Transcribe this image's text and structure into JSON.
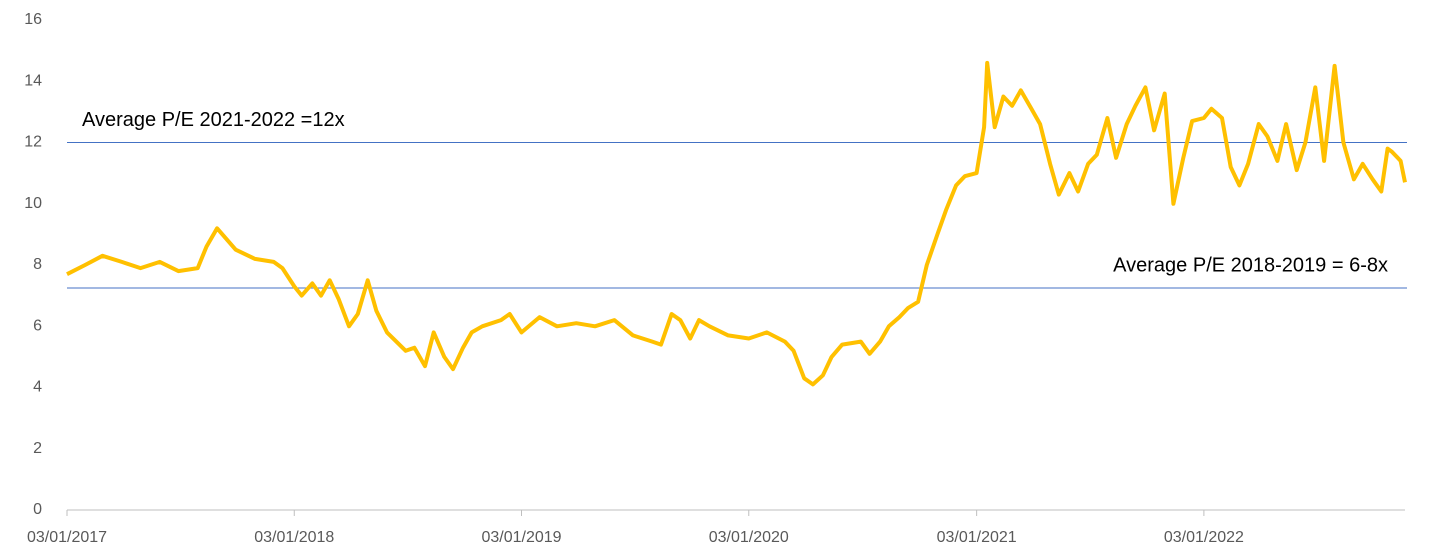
{
  "chart_data": {
    "type": "line",
    "x": [
      "03/01/2017",
      "01/02/2017",
      "01/03/2017",
      "01/04/2017",
      "01/05/2017",
      "01/06/2017",
      "01/07/2017",
      "01/08/2017",
      "15/08/2017",
      "01/09/2017",
      "01/10/2017",
      "01/11/2017",
      "01/12/2017",
      "15/12/2017",
      "03/01/2018",
      "15/01/2018",
      "01/02/2018",
      "15/02/2018",
      "01/03/2018",
      "15/03/2018",
      "01/04/2018",
      "15/04/2018",
      "01/05/2018",
      "15/05/2018",
      "01/06/2018",
      "01/07/2018",
      "15/07/2018",
      "01/08/2018",
      "15/08/2018",
      "01/09/2018",
      "15/09/2018",
      "01/10/2018",
      "15/10/2018",
      "01/11/2018",
      "01/12/2018",
      "15/12/2018",
      "03/01/2019",
      "01/02/2019",
      "01/03/2019",
      "01/04/2019",
      "01/05/2019",
      "01/06/2019",
      "01/07/2019",
      "01/08/2019",
      "15/08/2019",
      "01/09/2019",
      "15/09/2019",
      "01/10/2019",
      "15/10/2019",
      "01/11/2019",
      "01/12/2019",
      "03/01/2020",
      "01/02/2020",
      "01/03/2020",
      "15/03/2020",
      "01/04/2020",
      "15/04/2020",
      "01/05/2020",
      "15/05/2020",
      "01/06/2020",
      "01/07/2020",
      "15/07/2020",
      "01/08/2020",
      "15/08/2020",
      "01/09/2020",
      "15/09/2020",
      "01/10/2020",
      "15/10/2020",
      "01/11/2020",
      "15/11/2020",
      "01/12/2020",
      "15/12/2020",
      "03/01/2021",
      "15/01/2021",
      "20/01/2021",
      "01/02/2021",
      "15/02/2021",
      "01/03/2021",
      "15/03/2021",
      "01/04/2021",
      "15/04/2021",
      "01/05/2021",
      "15/05/2021",
      "01/06/2021",
      "15/06/2021",
      "01/07/2021",
      "15/07/2021",
      "01/08/2021",
      "15/08/2021",
      "01/09/2021",
      "15/09/2021",
      "01/10/2021",
      "15/10/2021",
      "01/11/2021",
      "15/11/2021",
      "01/12/2021",
      "15/12/2021",
      "03/01/2022",
      "15/01/2022",
      "01/02/2022",
      "15/02/2022",
      "01/03/2022",
      "15/03/2022",
      "01/04/2022",
      "15/04/2022",
      "01/05/2022",
      "15/05/2022",
      "01/06/2022",
      "15/06/2022",
      "01/07/2022",
      "15/07/2022",
      "01/08/2022",
      "15/08/2022",
      "01/09/2022",
      "15/09/2022",
      "01/10/2022",
      "15/10/2022",
      "25/10/2022",
      "01/11/2022",
      "15/11/2022",
      "22/11/2022"
    ],
    "series": [
      {
        "name": "P/E",
        "color": "#ffc000",
        "values": [
          7.7,
          8.0,
          8.3,
          8.1,
          7.9,
          8.1,
          7.8,
          7.9,
          8.6,
          9.2,
          8.5,
          8.2,
          8.1,
          7.9,
          7.3,
          7.0,
          7.4,
          7.0,
          7.5,
          6.9,
          6.0,
          6.4,
          7.5,
          6.5,
          5.8,
          5.2,
          5.3,
          4.7,
          5.8,
          5.0,
          4.6,
          5.3,
          5.8,
          6.0,
          6.2,
          6.4,
          5.8,
          6.3,
          6.0,
          6.1,
          6.0,
          6.2,
          5.7,
          5.5,
          5.4,
          6.4,
          6.2,
          5.6,
          6.2,
          6.0,
          5.7,
          5.6,
          5.8,
          5.5,
          5.2,
          4.3,
          4.1,
          4.4,
          5.0,
          5.4,
          5.5,
          5.1,
          5.5,
          6.0,
          6.3,
          6.6,
          6.8,
          8.0,
          9.0,
          9.8,
          10.6,
          10.9,
          11.0,
          12.5,
          14.6,
          12.5,
          13.5,
          13.2,
          13.7,
          13.1,
          12.6,
          11.3,
          10.3,
          11.0,
          10.4,
          11.3,
          11.6,
          12.8,
          11.5,
          12.6,
          13.2,
          13.8,
          12.4,
          13.6,
          10.0,
          11.5,
          12.7,
          12.8,
          13.1,
          12.8,
          11.2,
          10.6,
          11.3,
          12.6,
          12.2,
          11.4,
          12.6,
          11.1,
          12.0,
          13.8,
          11.4,
          14.5,
          12.0,
          10.8,
          11.3,
          10.8,
          10.4,
          11.8,
          11.7,
          11.4,
          10.7
        ]
      }
    ],
    "xlim": [
      "03/01/2017",
      "22/11/2022"
    ],
    "xticks": [
      "03/01/2017",
      "03/01/2018",
      "03/01/2019",
      "03/01/2020",
      "03/01/2021",
      "03/01/2022"
    ],
    "ylim": [
      0,
      16
    ],
    "yticks": [
      0,
      2,
      4,
      6,
      8,
      10,
      12,
      14,
      16
    ],
    "reference_lines": [
      {
        "value": 12,
        "label": "Average P/E 2021-2022 =12x",
        "color": "#4472c4"
      },
      {
        "value": 7.25,
        "label": "Average P/E 2018-2019 = 6-8x",
        "color": "#4472c4"
      }
    ]
  }
}
